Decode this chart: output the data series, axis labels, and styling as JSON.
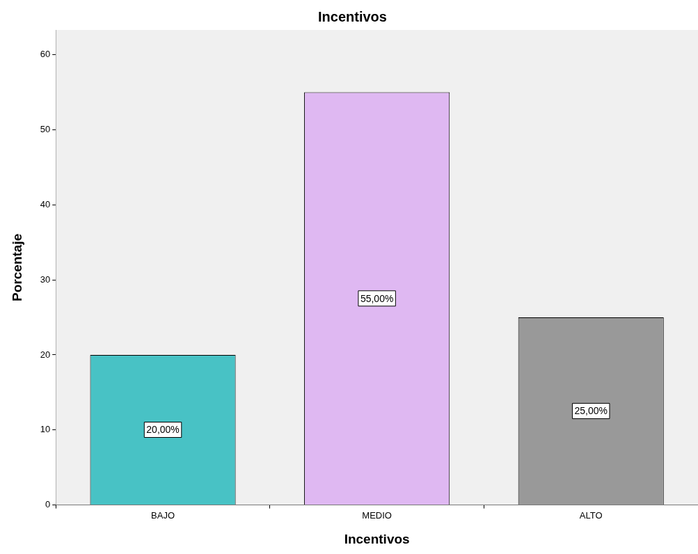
{
  "chart_data": {
    "type": "bar",
    "title": "Incentivos",
    "xlabel": "Incentivos",
    "ylabel": "Porcentaje",
    "categories": [
      "BAJO",
      "MEDIO",
      "ALTO"
    ],
    "values": [
      20,
      55,
      25
    ],
    "colors": [
      "#48c2c5",
      "#dfb8f2",
      "#999999"
    ],
    "value_labels": [
      "20,00%",
      "55,00%",
      "25,00%"
    ],
    "ylim": [
      0,
      63.3
    ],
    "yticks": [
      0,
      10,
      20,
      30,
      40,
      50,
      60
    ]
  }
}
